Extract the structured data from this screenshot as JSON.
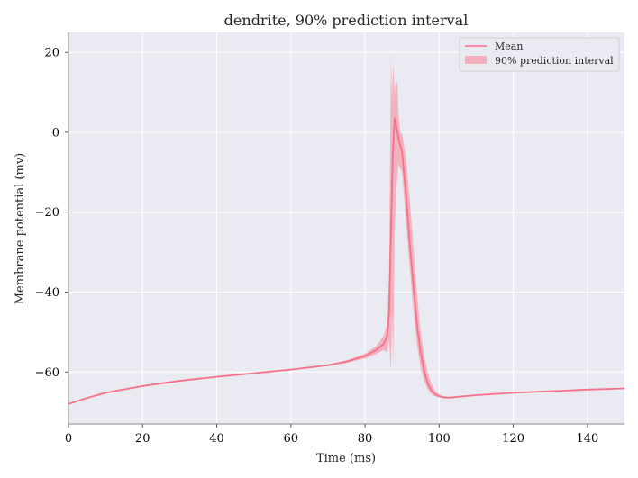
{
  "chart_data": {
    "type": "line",
    "title": "dendrite, 90% prediction interval",
    "xlabel": "Time (ms)",
    "ylabel": "Membrane potential (mv)",
    "xlim": [
      0,
      150
    ],
    "ylim": [
      -73,
      25
    ],
    "xticks": [
      0,
      20,
      40,
      60,
      80,
      100,
      120,
      140
    ],
    "xtick_labels": [
      "0",
      "20",
      "40",
      "60",
      "80",
      "100",
      "120",
      "140"
    ],
    "yticks": [
      20,
      0,
      -20,
      -40,
      -60
    ],
    "ytick_labels": [
      "20",
      "0",
      "−20",
      "−40",
      "−60"
    ],
    "grid": true,
    "legend_position": "top-right",
    "legend": [
      "Mean",
      "90% prediction interval"
    ],
    "colors": {
      "mean": "#f67088",
      "interval": "#f4a0b0",
      "plot_bg": "#eaeaf2",
      "grid": "#ffffff",
      "spine": "#a0a0a0"
    },
    "series": [
      {
        "name": "Mean",
        "x": [
          0,
          5,
          10,
          20,
          30,
          40,
          50,
          60,
          70,
          75,
          80,
          83,
          85,
          86,
          86.5,
          87,
          87.5,
          88,
          88.5,
          89,
          90,
          91,
          92,
          93,
          94,
          95,
          96,
          97,
          98,
          99,
          100,
          101,
          102,
          103,
          105,
          110,
          120,
          130,
          140,
          150
        ],
        "y": [
          -68,
          -66.5,
          -65.2,
          -63.5,
          -62.2,
          -61.2,
          -60.3,
          -59.4,
          -58.3,
          -57.4,
          -56,
          -54.5,
          -53,
          -51,
          -45,
          -25,
          -5,
          3.5,
          1.5,
          -1.5,
          -5,
          -15,
          -27,
          -38,
          -48,
          -55,
          -60,
          -63,
          -64.8,
          -65.6,
          -66.1,
          -66.3,
          -66.4,
          -66.4,
          -66.2,
          -65.8,
          -65.2,
          -64.8,
          -64.4,
          -64.1
        ]
      }
    ],
    "interval": {
      "name": "90% prediction interval",
      "x": [
        0,
        5,
        10,
        20,
        30,
        40,
        50,
        60,
        70,
        75,
        80,
        83,
        85,
        86,
        86.5,
        87,
        87.3,
        87.6,
        88,
        88.4,
        88.8,
        89,
        89.5,
        90,
        91,
        92,
        93,
        94,
        95,
        96,
        97,
        98,
        99,
        100,
        101,
        102,
        103,
        105,
        110,
        120,
        130,
        140,
        150
      ],
      "lower": [
        -68.1,
        -66.6,
        -65.3,
        -63.6,
        -62.3,
        -61.3,
        -60.4,
        -59.5,
        -58.5,
        -57.7,
        -56.6,
        -55.5,
        -54.5,
        -55,
        -52,
        -60,
        -45,
        -58,
        -25,
        -15,
        -10,
        -8,
        -9,
        -10,
        -22,
        -33,
        -44,
        -53,
        -59,
        -62.5,
        -64.5,
        -65.6,
        -66.1,
        -66.3,
        -66.4,
        -66.5,
        -66.5,
        -66.3,
        -65.9,
        -65.3,
        -64.9,
        -64.5,
        -64.2
      ],
      "upper": [
        -67.9,
        -66.4,
        -65.1,
        -63.4,
        -62.1,
        -61.1,
        -60.2,
        -59.3,
        -58.1,
        -57.1,
        -55.4,
        -53.5,
        -51,
        -48,
        -35,
        20,
        8,
        17,
        10,
        13,
        12,
        5,
        0,
        -0.5,
        -6,
        -16,
        -28,
        -40,
        -50,
        -56,
        -60.5,
        -63.2,
        -64.8,
        -65.6,
        -66,
        -66.2,
        -66.3,
        -66.1,
        -65.7,
        -65.1,
        -64.7,
        -64.3,
        -64.0
      ]
    }
  }
}
